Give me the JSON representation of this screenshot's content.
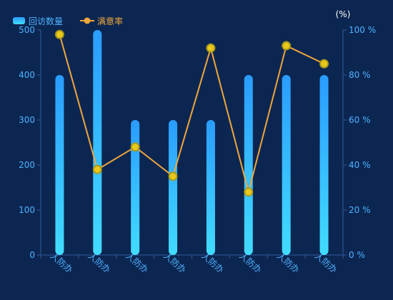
{
  "chart_data": {
    "type": "bar",
    "categories": [
      "人防办",
      "人防办",
      "人防办",
      "人防办",
      "人防办",
      "人防办",
      "人防办",
      "人防办"
    ],
    "y_left": {
      "ticks": [
        0,
        100,
        200,
        300,
        400,
        500
      ],
      "ylim": [
        0,
        500
      ]
    },
    "y_right": {
      "label": "(%)",
      "ticks": [
        "0 %",
        "20 %",
        "40 %",
        "60 %",
        "80 %",
        "100 %"
      ],
      "ylim": [
        0,
        100
      ]
    },
    "series": [
      {
        "name": "回访数量",
        "type": "bar",
        "axis": "left",
        "values": [
          400,
          500,
          300,
          300,
          300,
          400,
          400,
          400
        ]
      },
      {
        "name": "满意率",
        "type": "line",
        "axis": "right",
        "values": [
          98,
          38,
          48,
          35,
          92,
          28,
          93,
          85
        ]
      }
    ],
    "legend_position": "top-left",
    "grid": false,
    "colors": {
      "background": "#0c2652",
      "bar_top": "#2a9cff",
      "bar_bottom": "#42dcff",
      "line": "#f0a63a",
      "marker_fill": "#e8c81a",
      "marker_ring": "#a89a1c",
      "axis": "#2f5c98",
      "tick_text": "#4fb3ff",
      "legend_text": "#f0a63a",
      "right_title": "#ffffff"
    }
  }
}
